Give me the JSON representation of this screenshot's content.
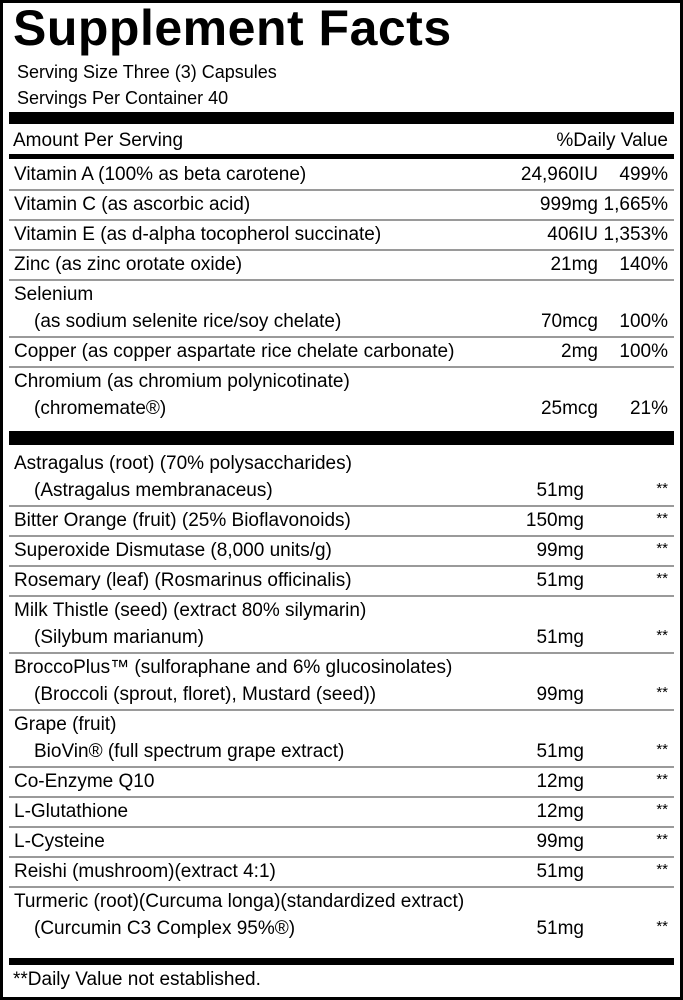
{
  "title": "Supplement Facts",
  "serving_size": "Serving Size Three (3) Capsules",
  "servings_per_container": "Servings Per Container 40",
  "header": {
    "amount_per_serving": "Amount Per Serving",
    "daily_value": "%Daily Value"
  },
  "vitamins_minerals": [
    {
      "name": "Vitamin A (100% as beta carotene)",
      "amount": "24,960IU",
      "dv": "499%"
    },
    {
      "name": "Vitamin C (as ascorbic acid)",
      "amount": "999mg",
      "dv": "1,665%"
    },
    {
      "name": "Vitamin E (as d-alpha tocopherol succinate)",
      "amount": "406IU",
      "dv": "1,353%"
    },
    {
      "name": "Zinc (as zinc orotate oxide)",
      "amount": "21mg",
      "dv": "140%"
    },
    {
      "name": "Selenium",
      "name2": "(as sodium selenite rice/soy chelate)",
      "amount": "70mcg",
      "dv": "100%"
    },
    {
      "name": "Copper (as copper aspartate rice chelate carbonate)",
      "amount": "2mg",
      "dv": "100%"
    },
    {
      "name": "Chromium (as chromium polynicotinate)",
      "name2": "(chromemate®)",
      "amount": "25mcg",
      "dv": "21%"
    }
  ],
  "other_ingredients": [
    {
      "name": "Astragalus (root) (70% polysaccharides)",
      "name2": "(Astragalus membranaceus)",
      "amount": "51mg",
      "dv": "**"
    },
    {
      "name": "Bitter Orange (fruit) (25% Bioflavonoids)",
      "amount": "150mg",
      "dv": "**"
    },
    {
      "name": "Superoxide Dismutase (8,000 units/g)",
      "amount": "99mg",
      "dv": "**"
    },
    {
      "name": "Rosemary (leaf) (Rosmarinus officinalis)",
      "amount": "51mg",
      "dv": "**"
    },
    {
      "name": "Milk Thistle (seed) (extract 80% silymarin)",
      "name2": "(Silybum marianum)",
      "amount": "51mg",
      "dv": "**"
    },
    {
      "name": "BroccoPlus™ (sulforaphane and 6% glucosinolates)",
      "name2": "(Broccoli (sprout, floret), Mustard (seed))",
      "amount": "99mg",
      "dv": "**"
    },
    {
      "name": "Grape (fruit)",
      "name2": "BioVin® (full spectrum grape extract)",
      "amount": "51mg",
      "dv": "**"
    },
    {
      "name": "Co-Enzyme Q10",
      "amount": "12mg",
      "dv": "**"
    },
    {
      "name": "L-Glutathione",
      "amount": "12mg",
      "dv": "**"
    },
    {
      "name": "L-Cysteine",
      "amount": "99mg",
      "dv": "**"
    },
    {
      "name": "Reishi (mushroom)(extract 4:1)",
      "amount": "51mg",
      "dv": "**"
    },
    {
      "name": "Turmeric (root)(Curcuma longa)(standardized extract)",
      "name2": "(Curcumin C3 Complex 95%®)",
      "amount": "51mg",
      "dv": "**"
    }
  ],
  "footnote": "**Daily Value not established."
}
